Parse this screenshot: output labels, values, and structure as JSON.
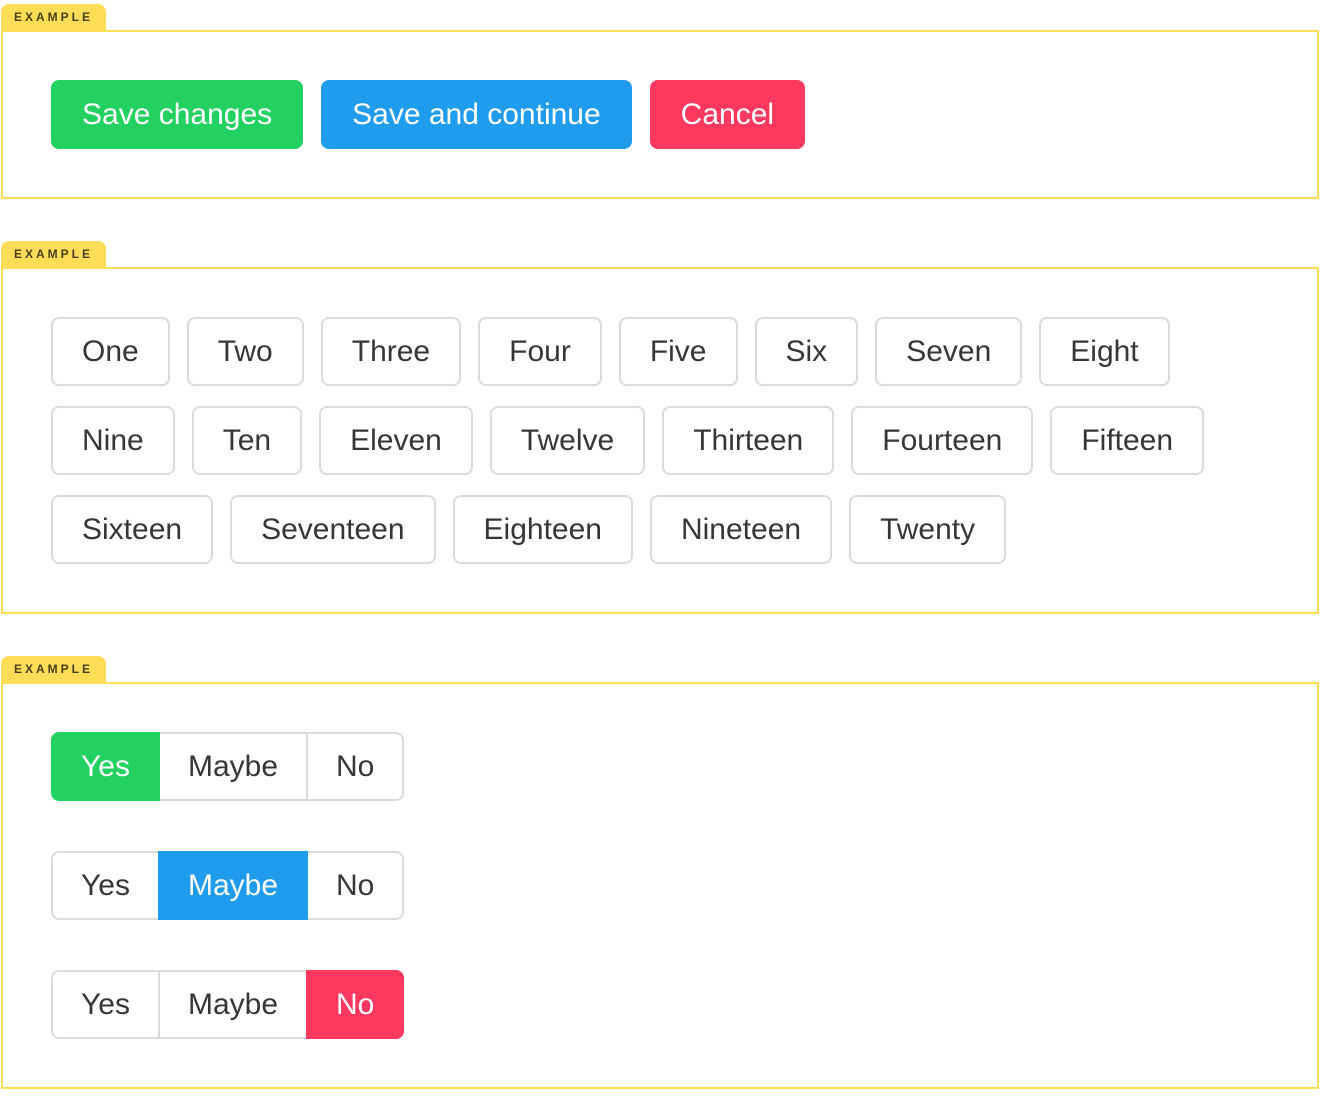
{
  "colors": {
    "yellow": "#ffdd57",
    "green": "#23d160",
    "blue": "#209cee",
    "red": "#ff3860",
    "btn_border": "#dbdbdb",
    "btn_text": "#363636"
  },
  "sections": [
    {
      "tag": "EXAMPLE",
      "buttons": [
        {
          "label": "Save changes",
          "variant": "success"
        },
        {
          "label": "Save and continue",
          "variant": "info"
        },
        {
          "label": "Cancel",
          "variant": "danger"
        }
      ]
    },
    {
      "tag": "EXAMPLE",
      "rows": [
        [
          "One",
          "Two",
          "Three",
          "Four",
          "Five",
          "Six",
          "Seven",
          "Eight"
        ],
        [
          "Nine",
          "Ten",
          "Eleven",
          "Twelve",
          "Thirteen",
          "Fourteen",
          "Fifteen"
        ],
        [
          "Sixteen",
          "Seventeen",
          "Eighteen",
          "Nineteen",
          "Twenty"
        ]
      ]
    },
    {
      "tag": "EXAMPLE",
      "groups": [
        {
          "options": [
            "Yes",
            "Maybe",
            "No"
          ],
          "selected": "Yes",
          "variant": "success"
        },
        {
          "options": [
            "Yes",
            "Maybe",
            "No"
          ],
          "selected": "Maybe",
          "variant": "info"
        },
        {
          "options": [
            "Yes",
            "Maybe",
            "No"
          ],
          "selected": "No",
          "variant": "danger"
        }
      ]
    }
  ]
}
